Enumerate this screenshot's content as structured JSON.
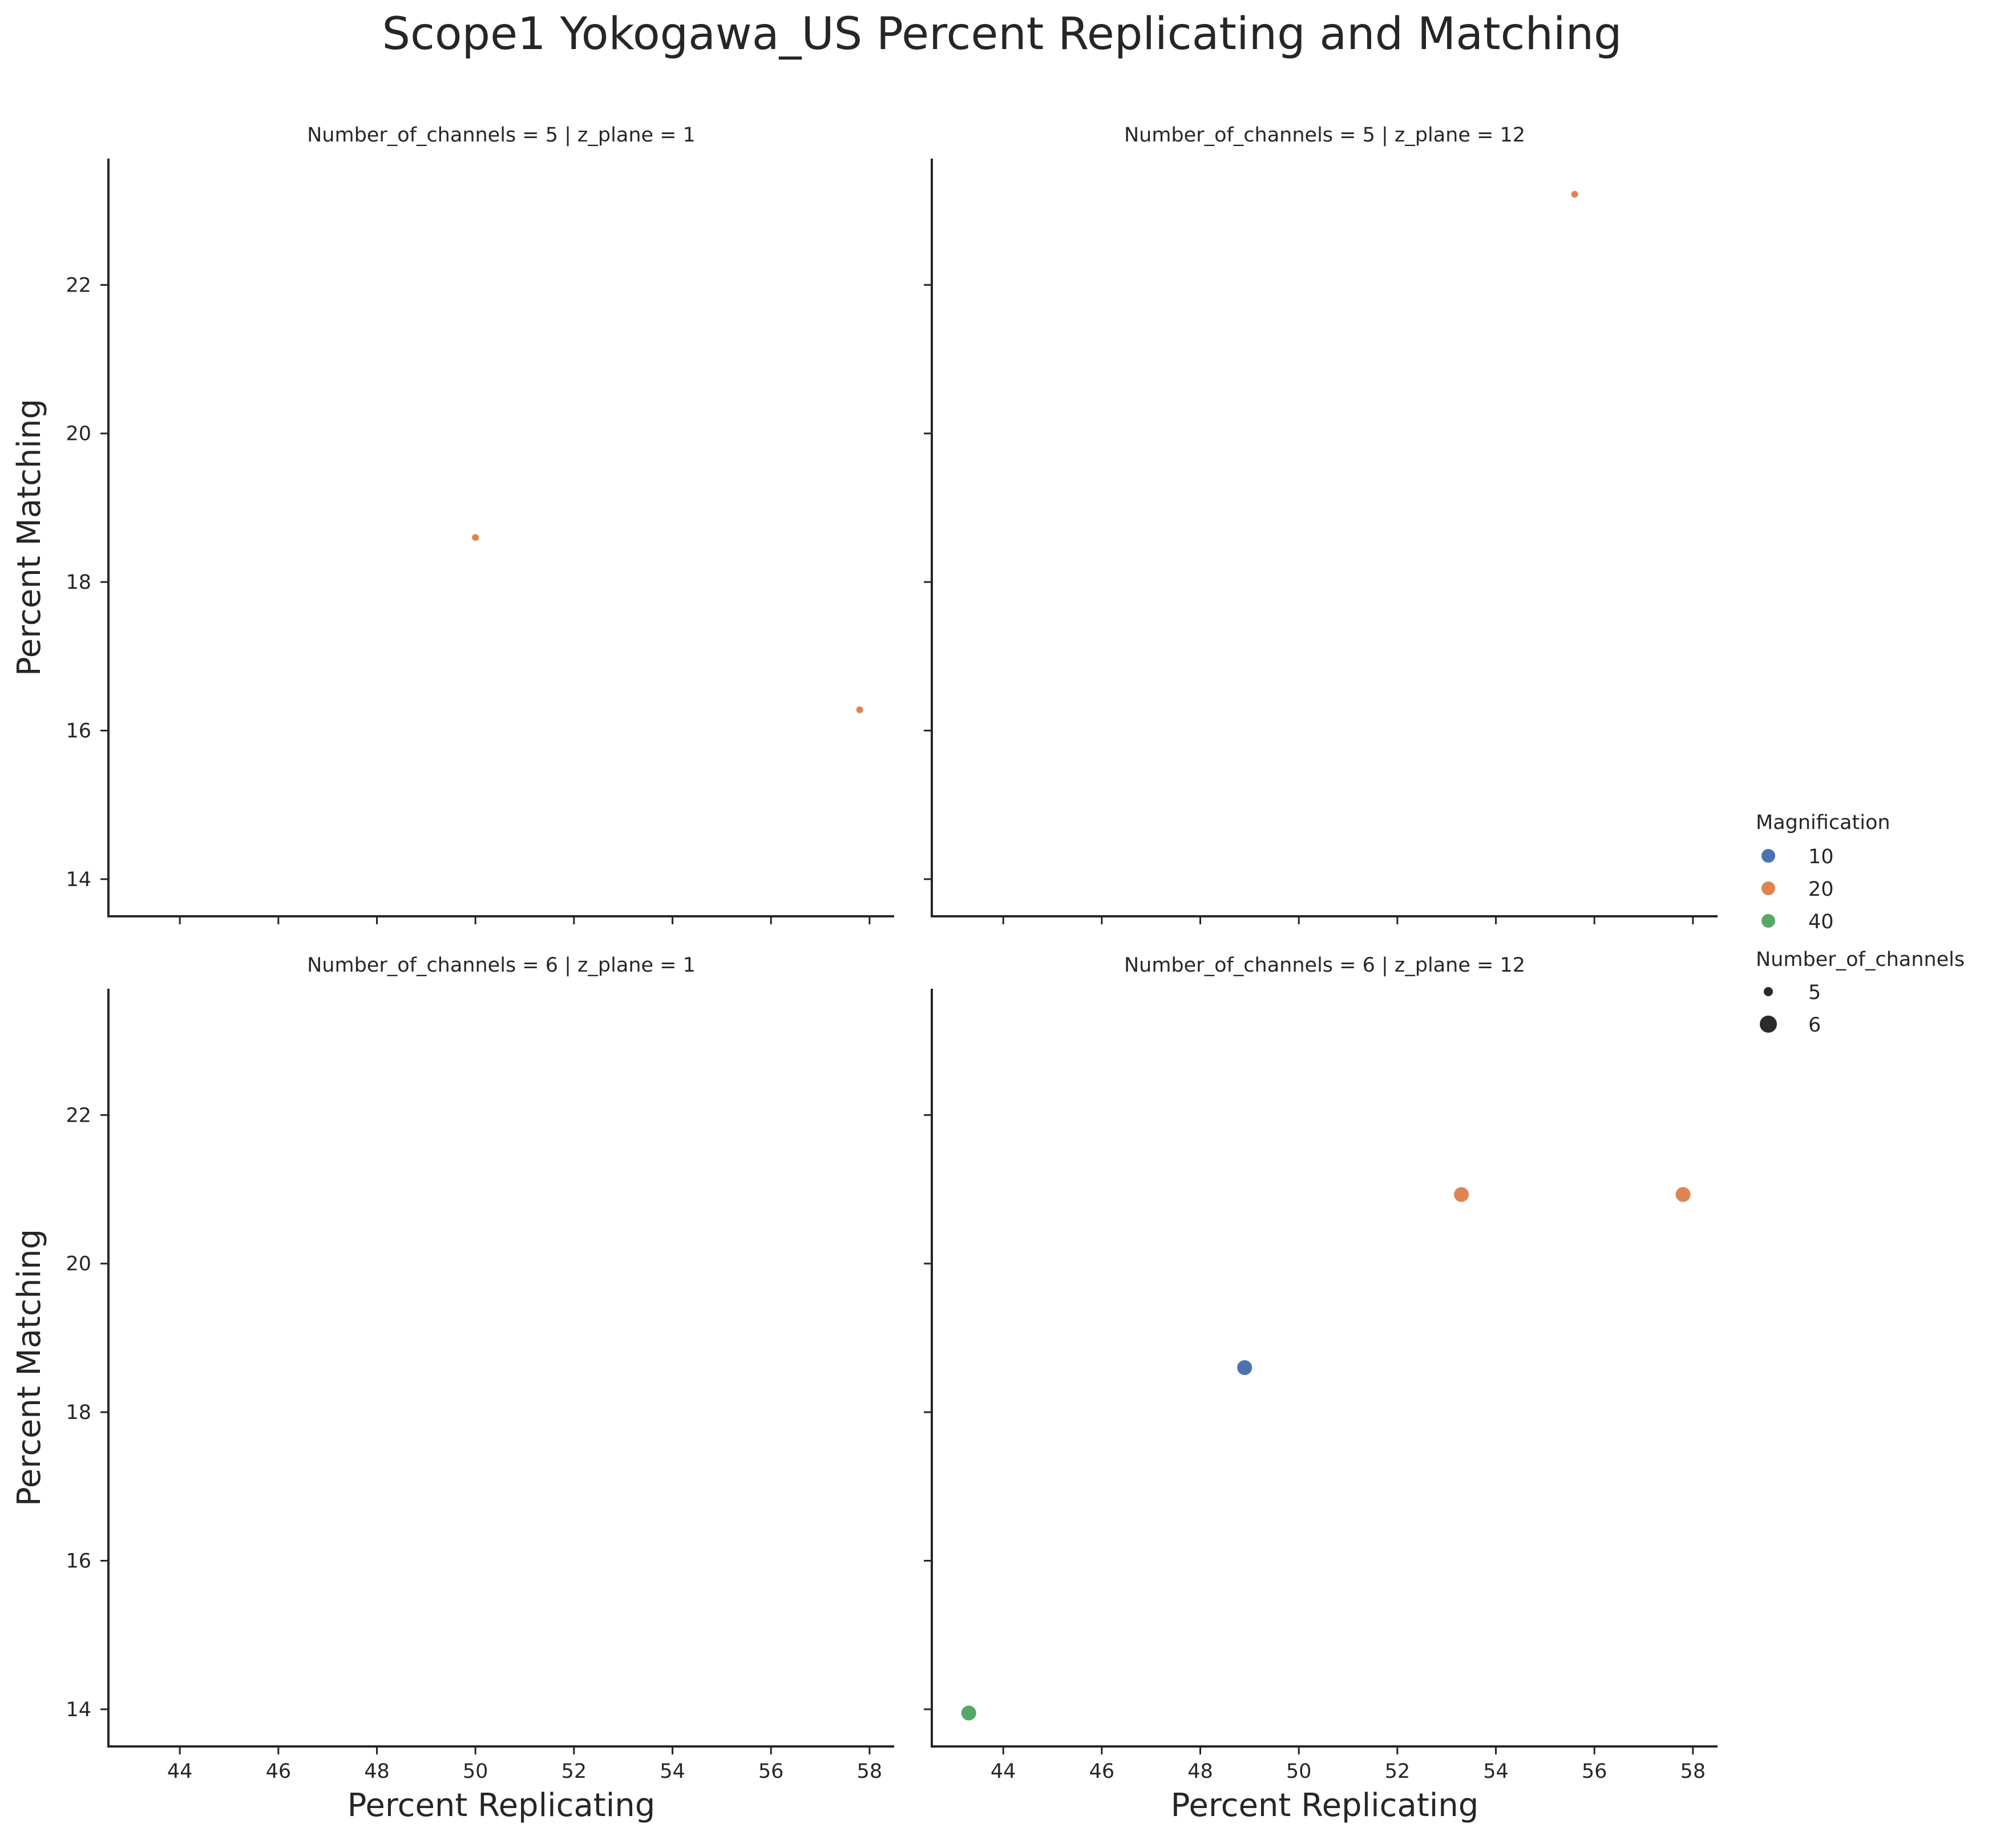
{
  "chart_data": {
    "type": "scatter",
    "title": "Scope1 Yokogawa_US Percent Replicating and Matching",
    "xlabel": "Percent Replicating",
    "ylabel": "Percent Matching",
    "xlim": [
      42.55,
      58.5
    ],
    "ylim": [
      13.5,
      23.7
    ],
    "xticks": [
      44,
      46,
      48,
      50,
      52,
      54,
      56,
      58
    ],
    "yticks": [
      14,
      16,
      18,
      20,
      22
    ],
    "grid": false,
    "legend_position": "right",
    "hue_key": "Magnification",
    "size_key": "Number_of_channels",
    "hue_legend": {
      "title": "Magnification",
      "entries": [
        {
          "label": "10",
          "color": "#4c72b0"
        },
        {
          "label": "20",
          "color": "#dd8452"
        },
        {
          "label": "40",
          "color": "#55a868"
        }
      ]
    },
    "size_legend": {
      "title": "Number_of_channels",
      "entries": [
        {
          "label": "5"
        },
        {
          "label": "6"
        }
      ]
    },
    "panels": [
      {
        "title": "Number_of_channels = 5 | z_plane = 1",
        "points": [
          {
            "x": 50.0,
            "y": 18.6,
            "Magnification": "20",
            "Number_of_channels": "5"
          },
          {
            "x": 57.8,
            "y": 16.28,
            "Magnification": "20",
            "Number_of_channels": "5"
          }
        ]
      },
      {
        "title": "Number_of_channels = 5 | z_plane = 12",
        "points": [
          {
            "x": 55.6,
            "y": 23.22,
            "Magnification": "20",
            "Number_of_channels": "5"
          }
        ]
      },
      {
        "title": "Number_of_channels = 6 | z_plane = 1",
        "points": []
      },
      {
        "title": "Number_of_channels = 6 | z_plane = 12",
        "points": [
          {
            "x": 43.3,
            "y": 13.95,
            "Magnification": "40",
            "Number_of_channels": "6"
          },
          {
            "x": 48.9,
            "y": 18.6,
            "Magnification": "10",
            "Number_of_channels": "6"
          },
          {
            "x": 53.3,
            "y": 20.93,
            "Magnification": "20",
            "Number_of_channels": "6"
          },
          {
            "x": 57.8,
            "y": 20.93,
            "Magnification": "20",
            "Number_of_channels": "6"
          }
        ]
      }
    ]
  }
}
